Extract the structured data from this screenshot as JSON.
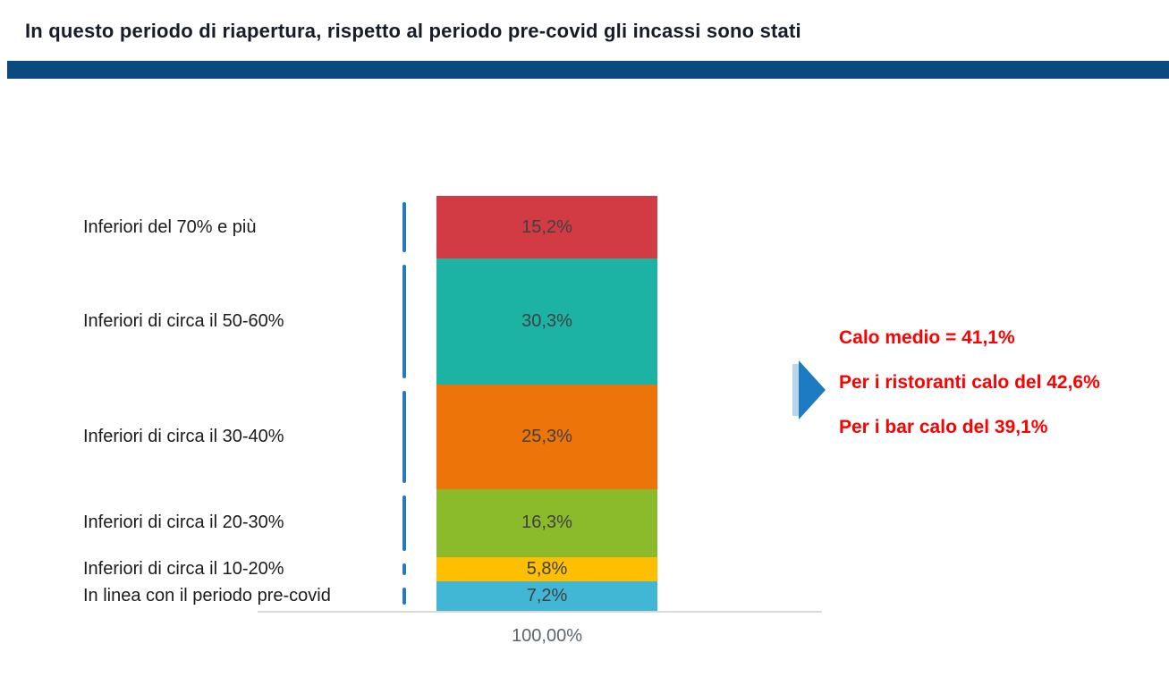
{
  "slide": {
    "title": "In questo periodo di riapertura, rispetto al periodo pre-covid gli incassi sono stati",
    "accent_bar_color": "#0b4a7e",
    "title_color": "#161c28"
  },
  "chart_data": {
    "type": "bar",
    "subtype": "single-stacked-column",
    "orientation": "vertical",
    "title": "",
    "xlabel": "",
    "ylabel": "",
    "ylim": [
      0,
      100
    ],
    "grid": false,
    "legend": "none",
    "categories": [
      "Inferiori del 70% e più",
      "Inferiori di circa il 50-60%",
      "Inferiori di circa il 30-40%",
      "Inferiori di circa il 20-30%",
      "Inferiori di circa il 10-20%",
      "In linea con il periodo pre-covid"
    ],
    "values": [
      15.2,
      30.3,
      25.3,
      16.3,
      5.8,
      7.2
    ],
    "segments": [
      {
        "label": "Inferiori del 70% e più",
        "value": 15.2,
        "display": "15,2%",
        "color": "#d33b44"
      },
      {
        "label": "Inferiori di circa il 50-60%",
        "value": 30.3,
        "display": "30,3%",
        "color": "#1db3a4"
      },
      {
        "label": "Inferiori di circa il 30-40%",
        "value": 25.3,
        "display": "25,3%",
        "color": "#ec7409"
      },
      {
        "label": "Inferiori di circa il 20-30%",
        "value": 16.3,
        "display": "16,3%",
        "color": "#8bbb2b"
      },
      {
        "label": "Inferiori di circa il 10-20%",
        "value": 5.8,
        "display": "5,8%",
        "color": "#fdbf00"
      },
      {
        "label": "In linea con il periodo pre-covid",
        "value": 7.2,
        "display": "7,2%",
        "color": "#42b7d5"
      }
    ],
    "total_label": "100,00%",
    "leader_line_color": "#2878be",
    "axis_line_color": "#d9d9d9",
    "value_label_color": "#404040"
  },
  "callout": {
    "lines": [
      "Calo medio = 41,1%",
      "Per i ristoranti calo del 42,6%",
      "Per i bar calo del 39,1%"
    ],
    "text_color": "#ff0000",
    "arrow_color": "#1d7bc4",
    "arrow_accent_color": "#b9d5eb"
  }
}
